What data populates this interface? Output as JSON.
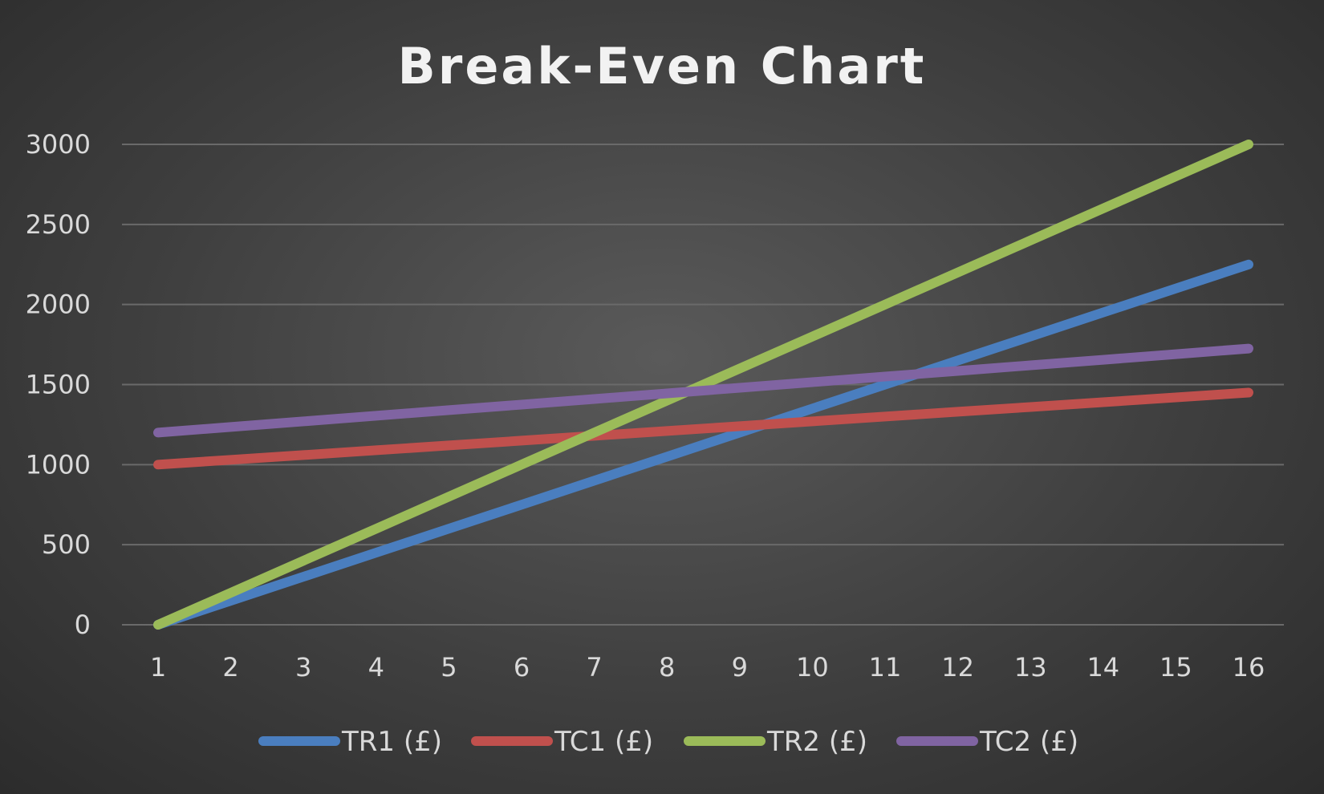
{
  "chart_data": {
    "type": "line",
    "title": "Break-Even Chart",
    "xlabel": "",
    "ylabel": "",
    "x": [
      1,
      2,
      3,
      4,
      5,
      6,
      7,
      8,
      9,
      10,
      11,
      12,
      13,
      14,
      15,
      16
    ],
    "xticks": [
      "1",
      "2",
      "3",
      "4",
      "5",
      "6",
      "7",
      "8",
      "9",
      "10",
      "11",
      "12",
      "13",
      "14",
      "15",
      "16"
    ],
    "yticks": [
      "0",
      "500",
      "1000",
      "1500",
      "2000",
      "2500",
      "3000"
    ],
    "ylim": [
      0,
      3000
    ],
    "grid": true,
    "legend": "bottom",
    "series": [
      {
        "name": "TR1 (£)",
        "color": "#4a7ebf",
        "values": [
          0,
          150,
          300,
          450,
          600,
          750,
          900,
          1050,
          1200,
          1350,
          1500,
          1650,
          1800,
          1950,
          2100,
          2250
        ]
      },
      {
        "name": "TC1 (£)",
        "color": "#c0504d",
        "values": [
          1000,
          1030,
          1060,
          1090,
          1120,
          1150,
          1180,
          1210,
          1240,
          1270,
          1300,
          1330,
          1360,
          1390,
          1420,
          1450
        ]
      },
      {
        "name": "TR2 (£)",
        "color": "#9bbb59",
        "values": [
          0,
          200,
          400,
          600,
          800,
          1000,
          1200,
          1400,
          1600,
          1800,
          2000,
          2200,
          2400,
          2600,
          2800,
          3000
        ]
      },
      {
        "name": "TC2 (£)",
        "color": "#8064a2",
        "values": [
          1200,
          1235,
          1270,
          1305,
          1340,
          1375,
          1410,
          1445,
          1480,
          1515,
          1550,
          1585,
          1620,
          1655,
          1690,
          1725
        ]
      }
    ]
  }
}
